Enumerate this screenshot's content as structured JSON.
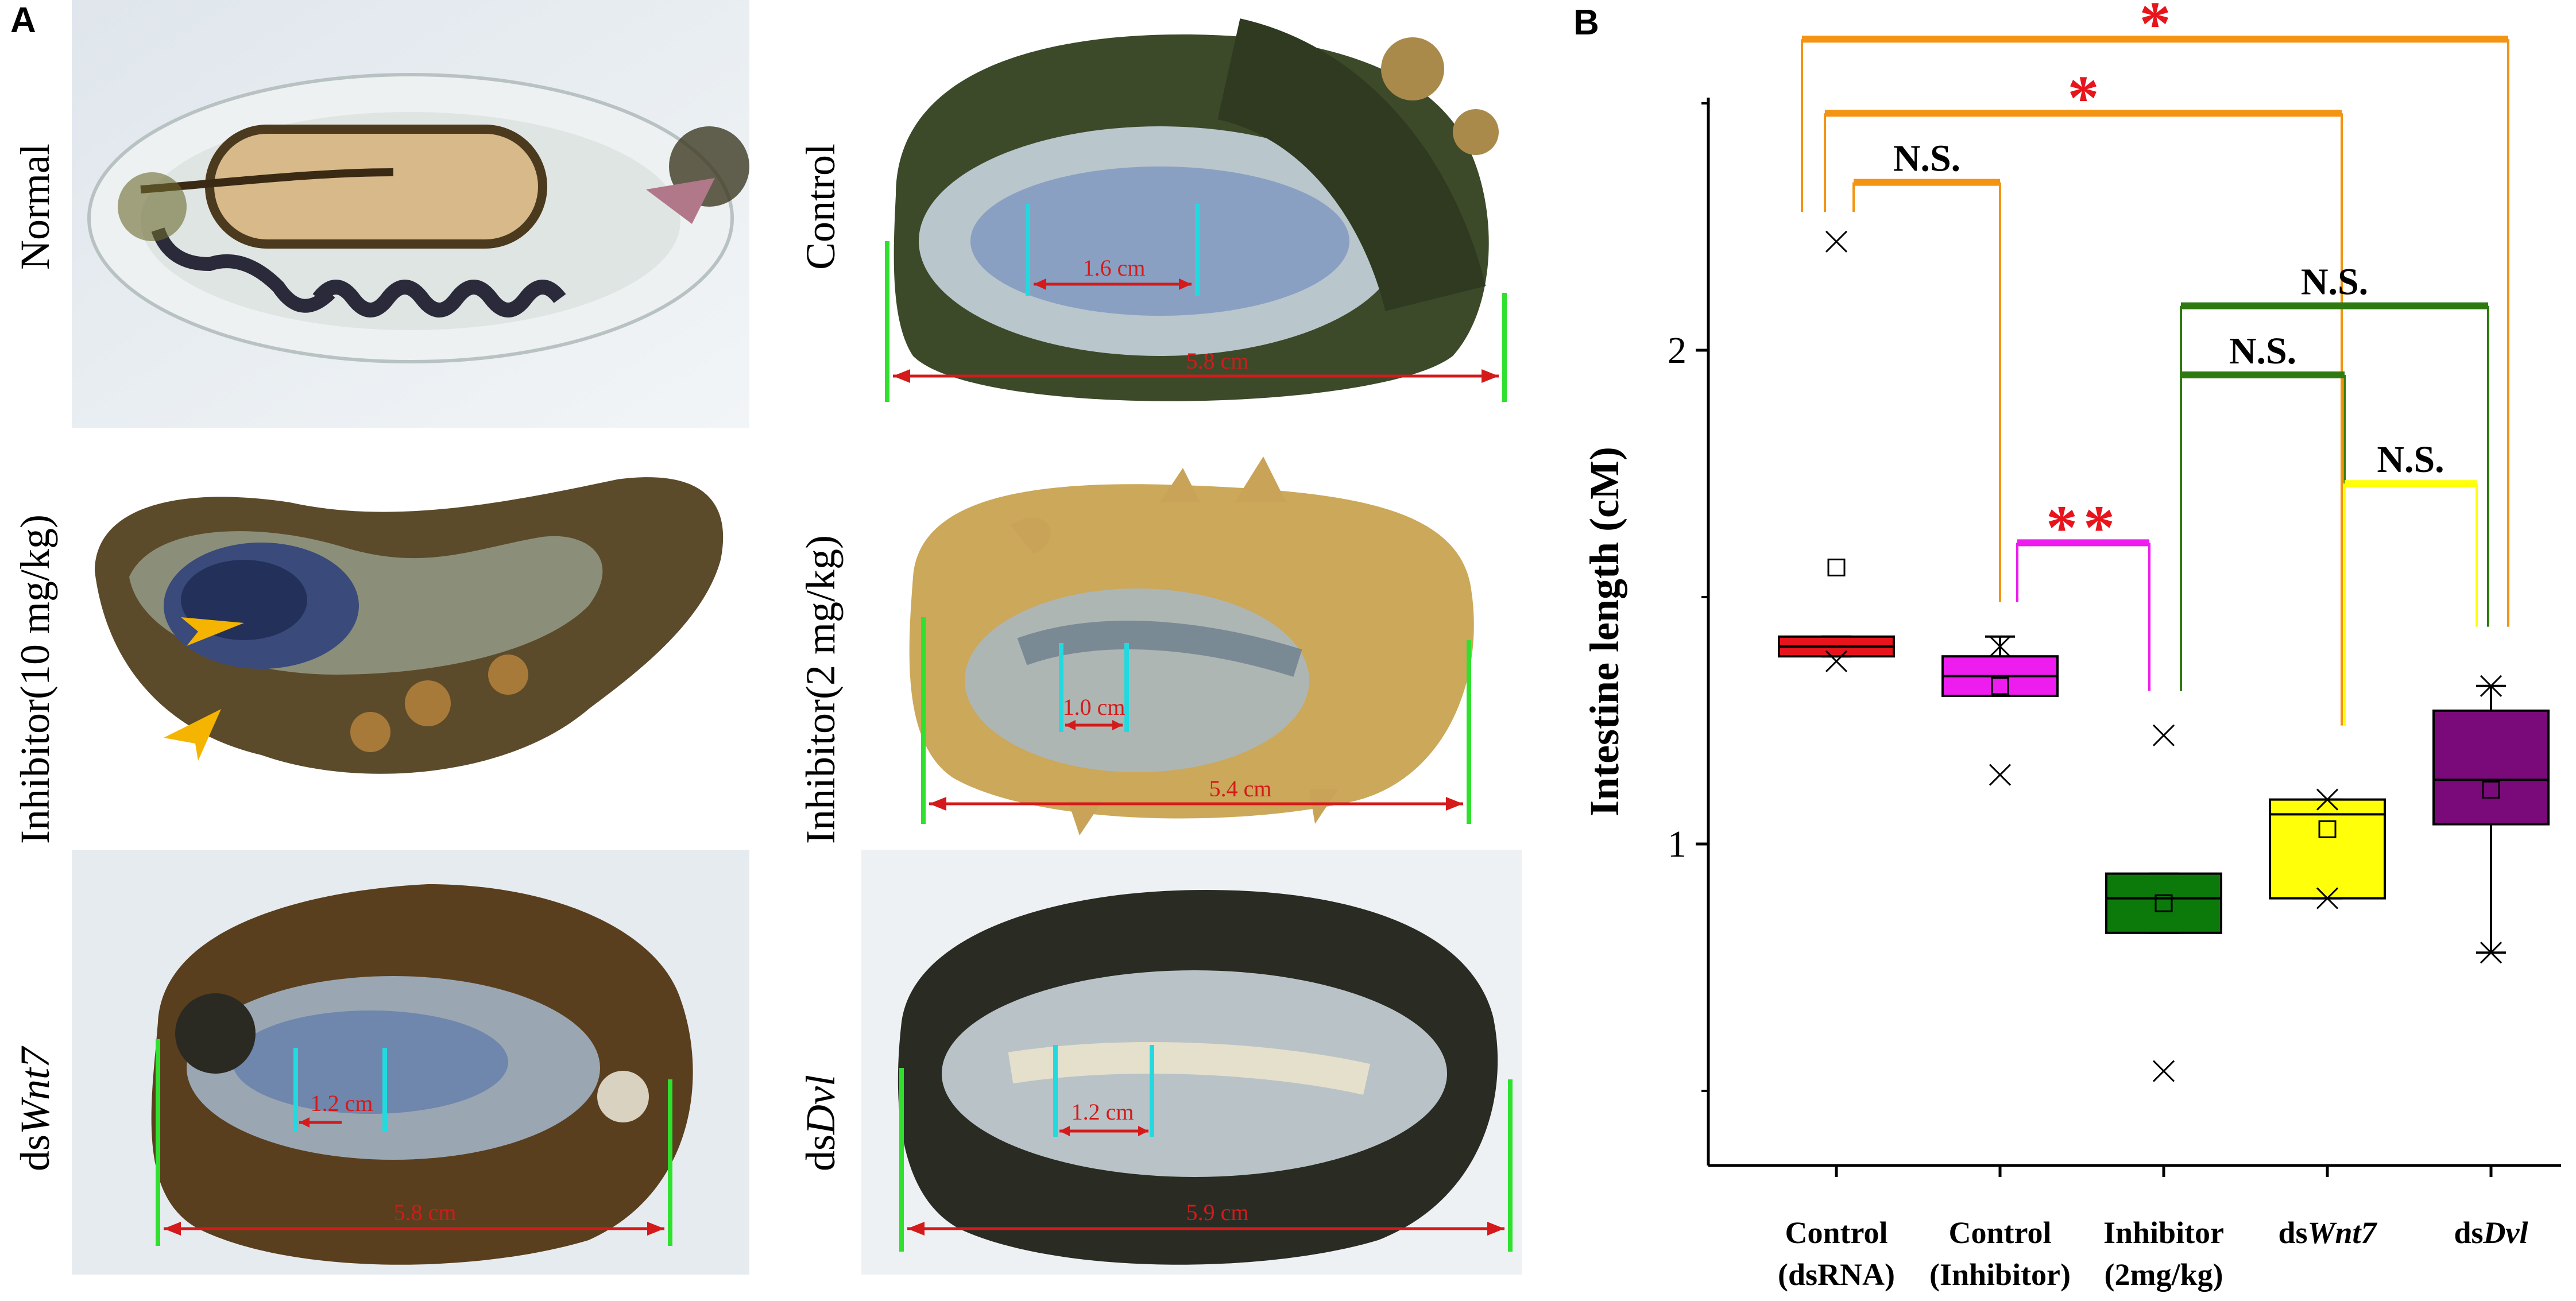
{
  "panel_a": {
    "letter": "A",
    "photos": [
      {
        "label": "Normal",
        "label_italic": "",
        "measures": []
      },
      {
        "label": "Control",
        "label_italic": "",
        "measures": [
          "1.6 cm",
          "5.8 cm"
        ]
      },
      {
        "label": "Inhibitor(10 mg/kg)",
        "label_italic": "",
        "measures": []
      },
      {
        "label": "Inhibitor(2 mg/kg)",
        "label_italic": "",
        "measures": [
          "1.0 cm",
          "5.4 cm"
        ]
      },
      {
        "label": "ds",
        "label_italic": "Wnt7",
        "measures": [
          "1.2 cm",
          "5.8 cm"
        ]
      },
      {
        "label": "ds",
        "label_italic": "Dvl",
        "measures": [
          "1.2 cm",
          "5.9 cm"
        ]
      }
    ],
    "colors": {
      "measure_red": "#d41a1a",
      "measure_cyan": "#23d9e0",
      "measure_green": "#2fe02f",
      "arrow_yellow": "#f4b400"
    }
  },
  "chart_data": {
    "letter": "B",
    "type": "box",
    "ylabel": "Intestine length (cM)",
    "ylim": [
      0.5,
      2.5
    ],
    "yticks": [
      1,
      2
    ],
    "categories": [
      {
        "line1": "Control",
        "line2": "(dsRNA)",
        "prefix": "",
        "italic": ""
      },
      {
        "line1": "Control",
        "line2": "(Inhibitor)",
        "prefix": "",
        "italic": ""
      },
      {
        "line1": "Inhibitor",
        "line2": "(2mg/kg)",
        "prefix": "",
        "italic": ""
      },
      {
        "line1": "",
        "line2": "",
        "prefix": "ds",
        "italic": "Wnt7"
      },
      {
        "line1": "",
        "line2": "",
        "prefix": "ds",
        "italic": "Dvl"
      }
    ],
    "boxes": [
      {
        "q1": 1.38,
        "median": 1.4,
        "q3": 1.42,
        "mean": 1.56,
        "whisker_low": 1.38,
        "whisker_high": 1.42,
        "outliers": [
          2.22,
          1.37
        ],
        "color": "#e8141c"
      },
      {
        "q1": 1.3,
        "median": 1.34,
        "q3": 1.38,
        "mean": 1.32,
        "whisker_low": 1.3,
        "whisker_high": 1.42,
        "outliers": [
          1.4,
          1.14
        ],
        "color": "#ee1cee"
      },
      {
        "q1": 0.82,
        "median": 0.89,
        "q3": 0.94,
        "mean": 0.88,
        "whisker_low": 0.82,
        "whisker_high": 0.94,
        "outliers": [
          1.22,
          0.54
        ],
        "color": "#0b7a0b"
      },
      {
        "q1": 0.89,
        "median": 1.06,
        "q3": 1.09,
        "mean": 1.03,
        "whisker_low": 0.89,
        "whisker_high": 1.09,
        "outliers": [
          1.09,
          0.89
        ],
        "color": "#ffff0a"
      },
      {
        "q1": 1.04,
        "median": 1.13,
        "q3": 1.27,
        "mean": 1.11,
        "whisker_low": 0.78,
        "whisker_high": 1.32,
        "outliers": [
          1.32,
          0.78
        ],
        "color": "#7a0a7a"
      }
    ],
    "significance": [
      {
        "from": 0,
        "to": 4,
        "label": "*",
        "bar_y": 2.63,
        "from_leg_low": 2.28,
        "to_leg_low": 1.44,
        "color": "#f39413",
        "label_color": "#e8141c"
      },
      {
        "from": 0,
        "to": 3,
        "label": "*",
        "bar_y": 2.48,
        "from_leg_low": 2.28,
        "to_leg_low": 1.24,
        "color": "#f39413",
        "label_color": "#e8141c"
      },
      {
        "from": 0,
        "to": 1,
        "label": "N.S.",
        "bar_y": 2.34,
        "from_leg_low": 2.28,
        "to_leg_low": 1.49,
        "color": "#f39413",
        "label_color": "#000000"
      },
      {
        "from": 2,
        "to": 4,
        "label": "N.S.",
        "bar_y": 2.09,
        "from_leg_low": 1.31,
        "to_leg_low": 1.44,
        "color": "#2e7a10",
        "label_color": "#000000"
      },
      {
        "from": 2,
        "to": 3,
        "label": "N.S.",
        "bar_y": 1.95,
        "from_leg_low": 1.31,
        "to_leg_low": 1.24,
        "color": "#2e7a10",
        "label_color": "#000000"
      },
      {
        "from": 1,
        "to": 2,
        "label": "**",
        "bar_y": 1.61,
        "from_leg_low": 1.49,
        "to_leg_low": 1.31,
        "color": "#ee1cee",
        "label_color": "#e8141c"
      },
      {
        "from": 3,
        "to": 4,
        "label": "N.S.",
        "bar_y": 1.73,
        "from_leg_low": 1.24,
        "to_leg_low": 1.44,
        "color": "#ffff0a",
        "label_color": "#000000"
      }
    ]
  }
}
